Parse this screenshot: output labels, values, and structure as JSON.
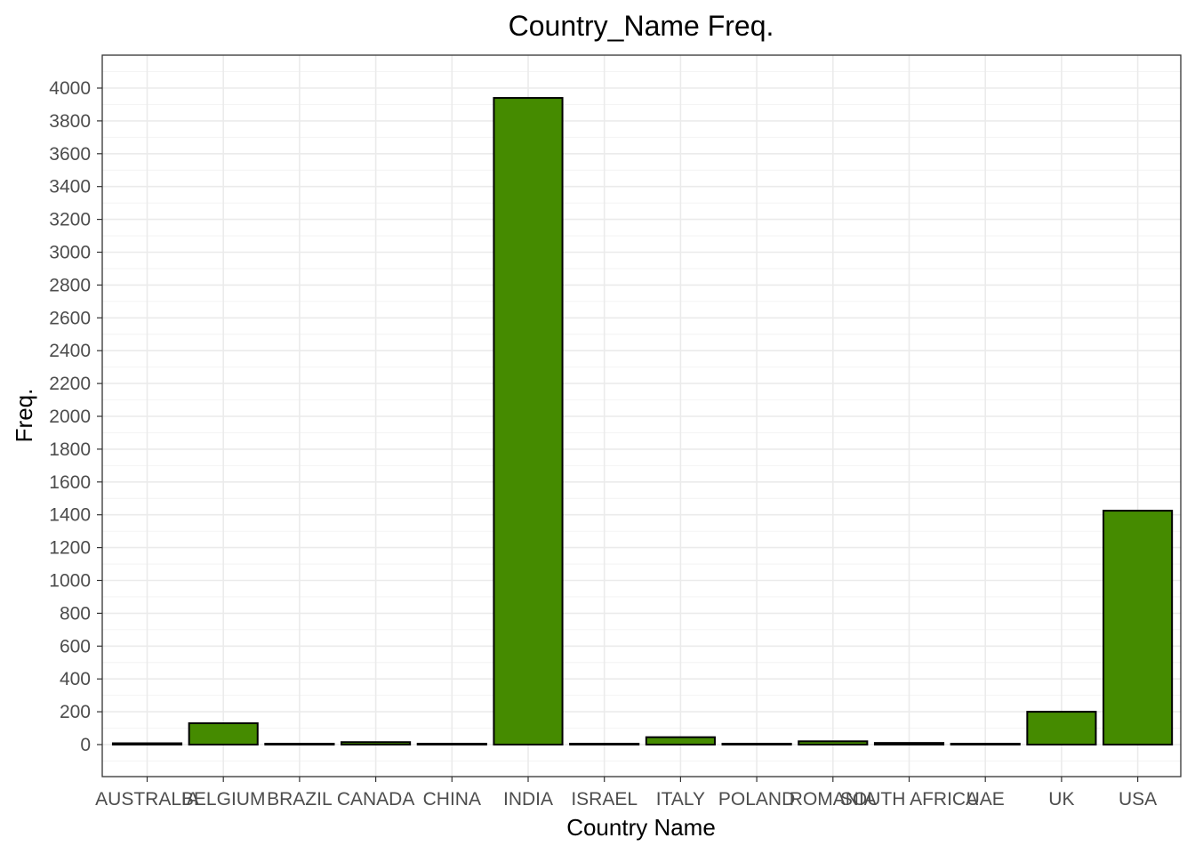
{
  "chart_data": {
    "type": "bar",
    "title": "Country_Name Freq.",
    "xlabel": "Country Name",
    "ylabel": "Freq.",
    "categories": [
      "AUSTRALIA",
      "BELGIUM",
      "BRAZIL",
      "CANADA",
      "CHINA",
      "INDIA",
      "ISRAEL",
      "ITALY",
      "POLAND",
      "ROMANIA",
      "SOUTH AFRICA",
      "UAE",
      "UK",
      "USA"
    ],
    "values": [
      8,
      130,
      2,
      15,
      2,
      3940,
      2,
      45,
      2,
      20,
      10,
      2,
      200,
      1425
    ],
    "ylim": [
      -200,
      4150
    ],
    "yticks": [
      0,
      200,
      400,
      600,
      800,
      1000,
      1200,
      1400,
      1600,
      1800,
      2000,
      2200,
      2400,
      2600,
      2800,
      3000,
      3200,
      3400,
      3600,
      3800,
      4000
    ],
    "grid": true,
    "legend": "none",
    "bar_color": "#458B00",
    "bar_outline": "#000000"
  }
}
